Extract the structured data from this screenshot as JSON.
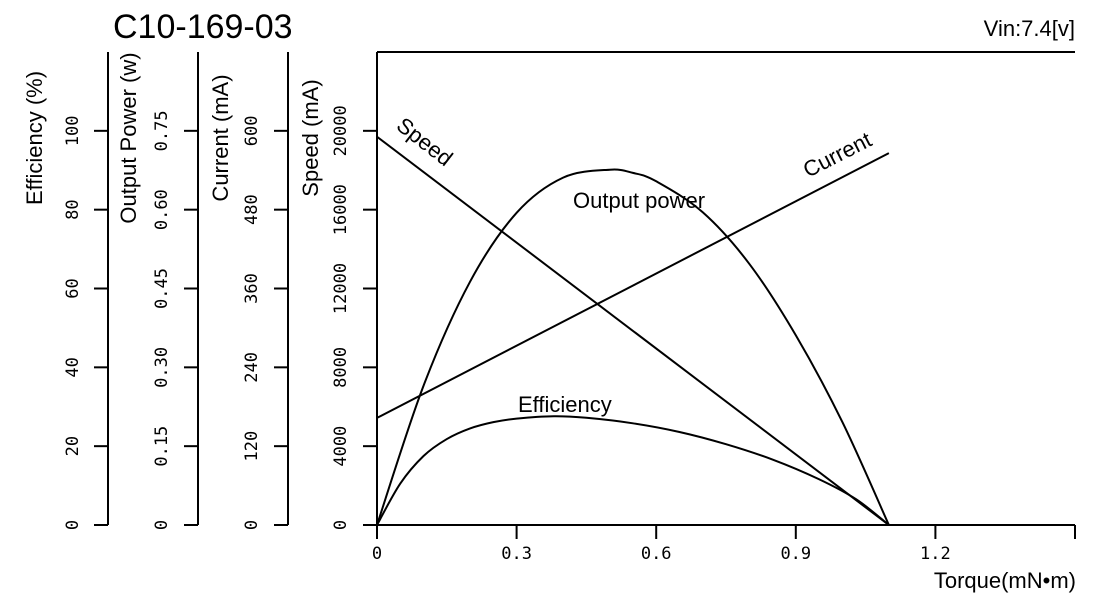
{
  "chart_data": {
    "type": "line",
    "title": "C10-169-03",
    "vin_label": "Vin:7.4[v]",
    "xlabel": "Torque(mN•m)",
    "xlim": [
      0,
      1.5
    ],
    "xticks": [
      "0",
      "0.3",
      "0.6",
      "0.9",
      "1.2"
    ],
    "xtick_values": [
      0,
      0.3,
      0.6,
      0.9,
      1.2
    ],
    "y_axes": [
      {
        "id": "efficiency",
        "label": "Efficiency (%)",
        "ylim": [
          0,
          120
        ],
        "tick_values": [
          0,
          20,
          40,
          60,
          80,
          100
        ],
        "ticks": [
          "0",
          "20",
          "40",
          "60",
          "80",
          "100"
        ]
      },
      {
        "id": "output_power",
        "label": "Output Power (w)",
        "ylim": [
          0,
          0.9
        ],
        "tick_values": [
          0,
          0.15,
          0.3,
          0.45,
          0.6,
          0.75
        ],
        "ticks": [
          "0",
          "0.15",
          "0.30",
          "0.45",
          "0.60",
          "0.75"
        ]
      },
      {
        "id": "current",
        "label": "Current (mA)",
        "ylim": [
          0,
          720
        ],
        "tick_values": [
          0,
          120,
          240,
          360,
          480,
          600
        ],
        "ticks": [
          "0",
          "120",
          "240",
          "360",
          "480",
          "600"
        ]
      },
      {
        "id": "speed",
        "label": "Speed  (mA)",
        "ylim": [
          0,
          24000
        ],
        "tick_values": [
          0,
          4000,
          8000,
          12000,
          16000,
          20000
        ],
        "ticks": [
          "0",
          "4000",
          "8000",
          "12000",
          "16000",
          "20000"
        ]
      }
    ],
    "series": [
      {
        "name": "Speed",
        "axis": "speed",
        "x": [
          0,
          1.1
        ],
        "y": [
          19700,
          0
        ]
      },
      {
        "name": "Current",
        "axis": "current",
        "x": [
          0,
          1.1
        ],
        "y": [
          163,
          566
        ]
      },
      {
        "name": "Output power",
        "axis": "output_power",
        "x": [
          0,
          0.1,
          0.2,
          0.3,
          0.4,
          0.5,
          0.55,
          0.6,
          0.7,
          0.8,
          0.9,
          1.0,
          1.1
        ],
        "y": [
          0,
          0.265,
          0.463,
          0.594,
          0.661,
          0.676,
          0.67,
          0.654,
          0.595,
          0.497,
          0.361,
          0.196,
          0
        ]
      },
      {
        "name": "Efficiency",
        "axis": "efficiency",
        "x": [
          0,
          0.05,
          0.1,
          0.15,
          0.2,
          0.25,
          0.3,
          0.38,
          0.45,
          0.55,
          0.65,
          0.75,
          0.85,
          0.95,
          1.03,
          1.1
        ],
        "y": [
          0,
          10.5,
          17.5,
          21.8,
          24.5,
          26.1,
          27.0,
          27.6,
          27.2,
          25.8,
          23.6,
          20.5,
          16.6,
          11.6,
          6.5,
          0
        ]
      }
    ]
  }
}
